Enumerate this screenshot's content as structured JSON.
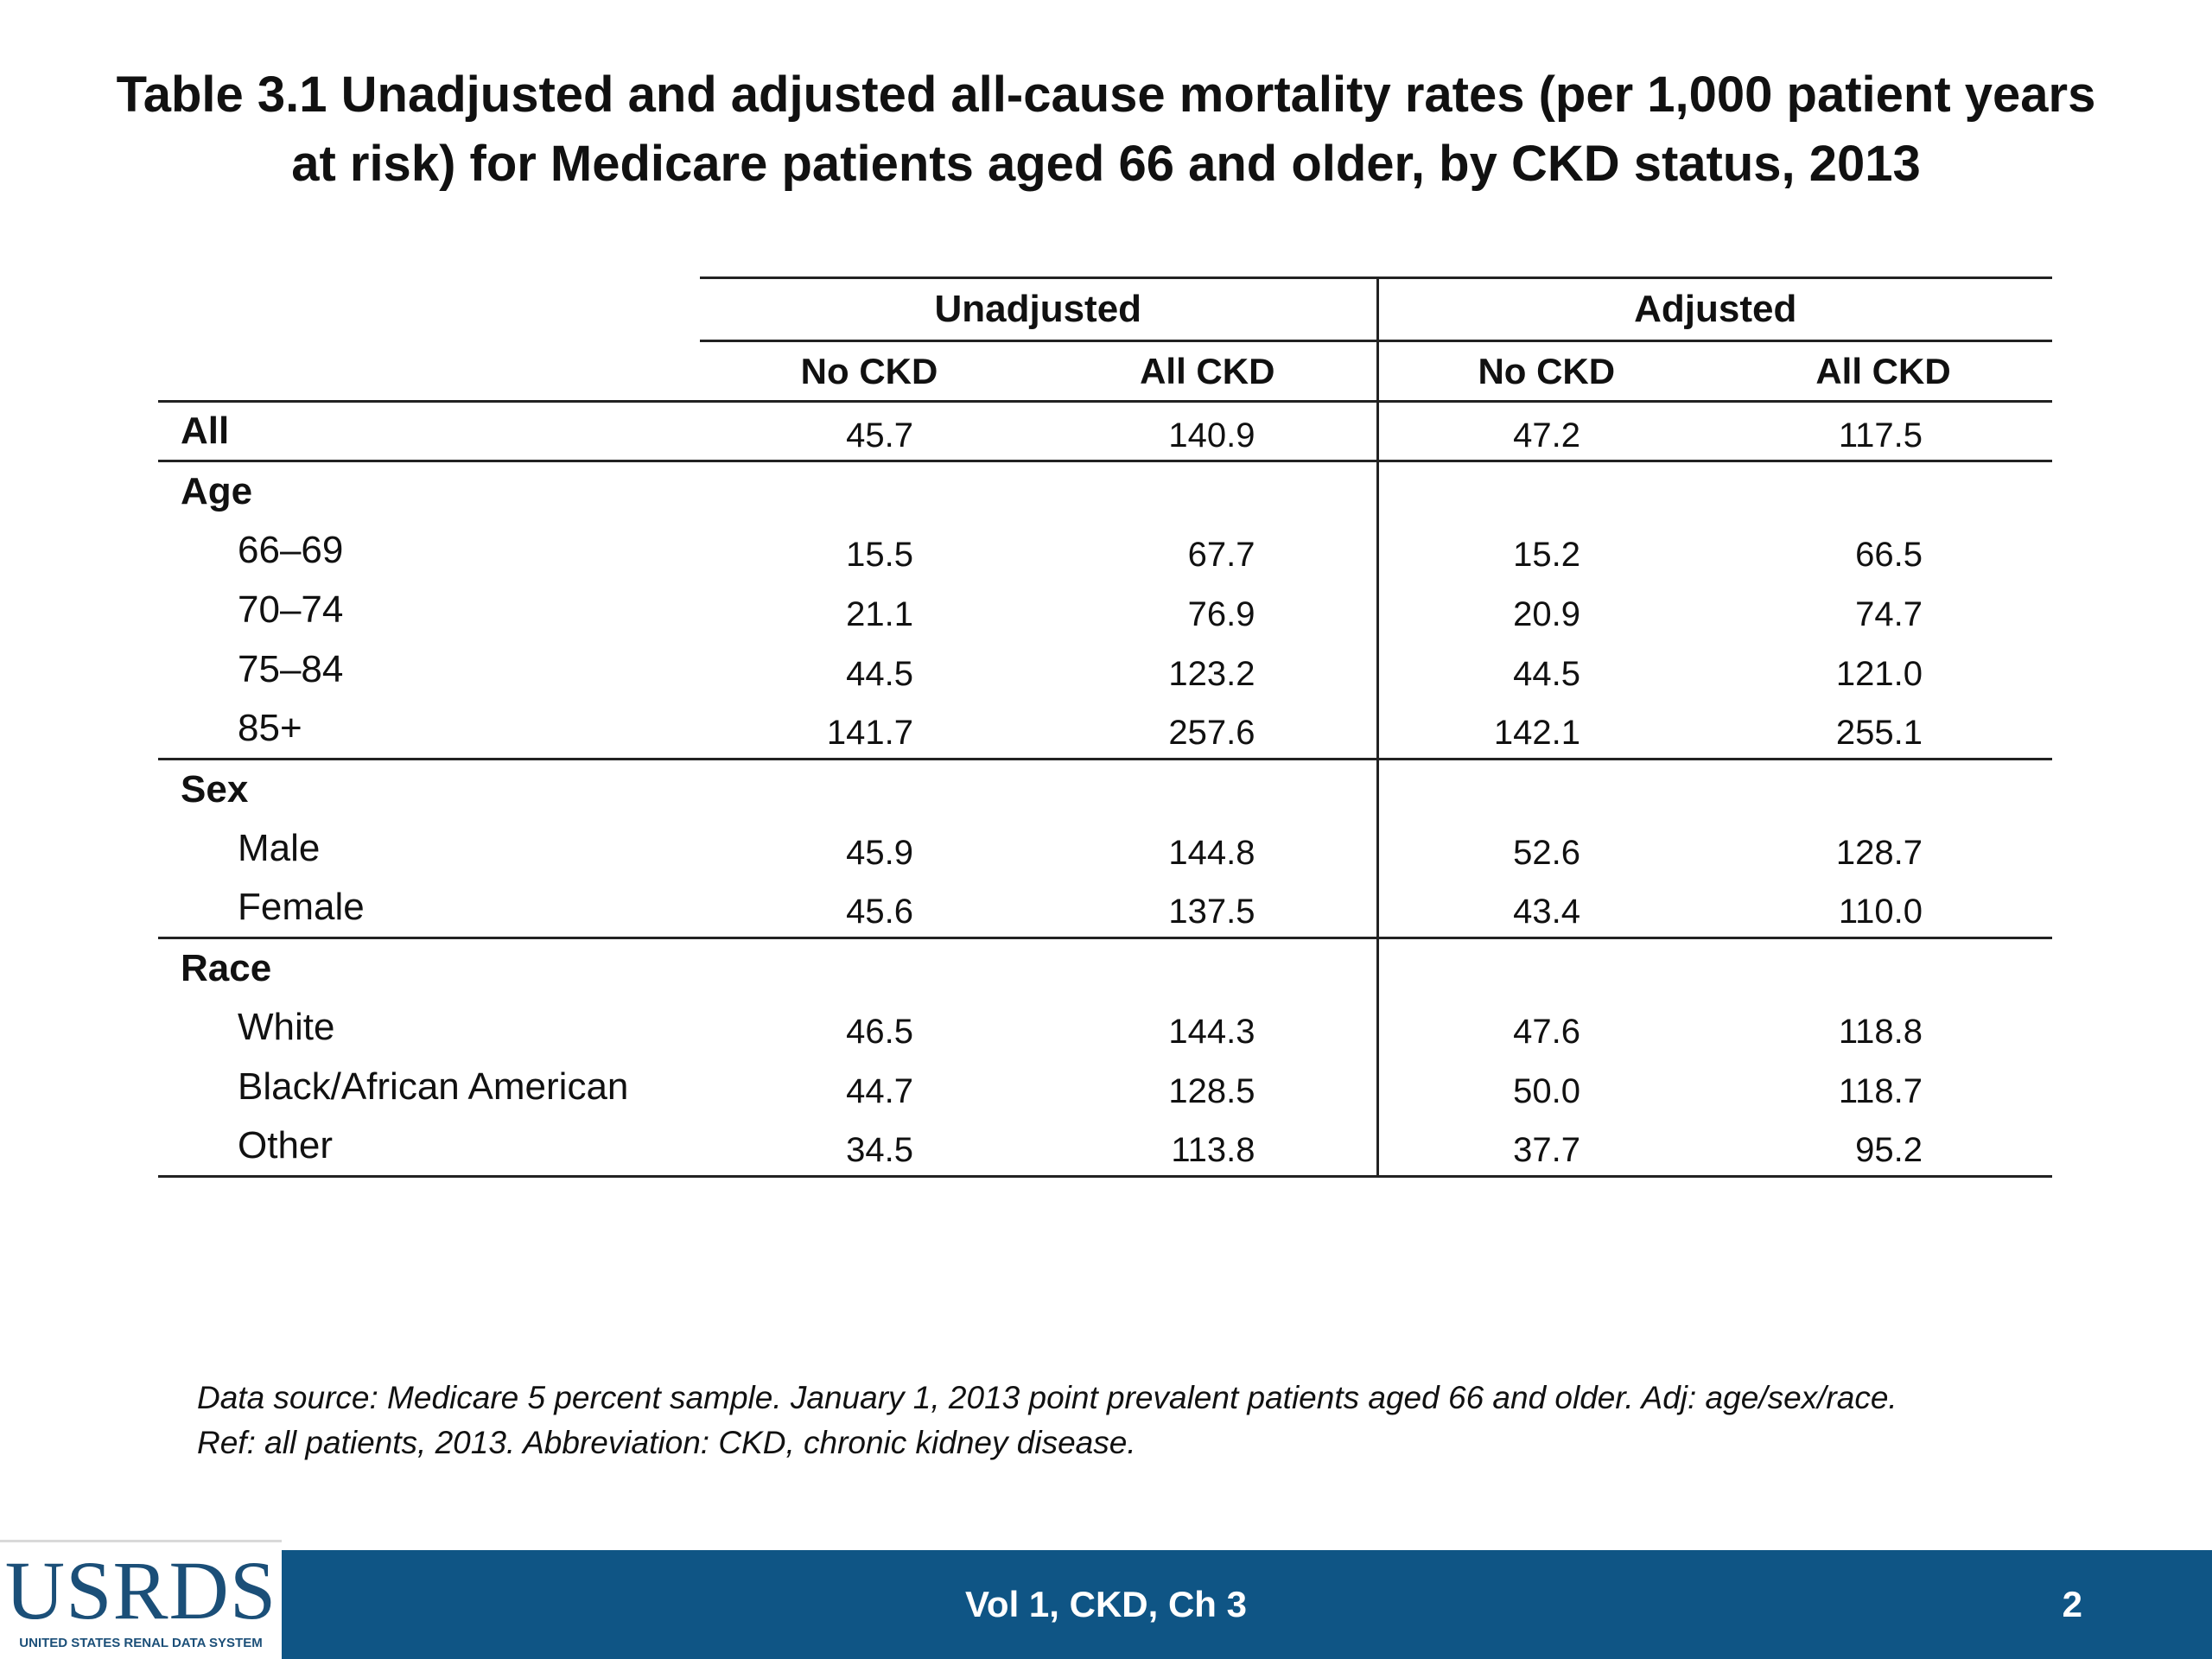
{
  "title": {
    "line1": "Table 3.1  Unadjusted and adjusted all-cause mortality rates (per 1,000 patient years",
    "line2": "at risk) for Medicare patients aged 66 and older, by CKD status, 2013"
  },
  "table": {
    "groups": [
      "Unadjusted",
      "Adjusted"
    ],
    "columns": [
      "No CKD",
      "All CKD",
      "No CKD",
      "All CKD"
    ],
    "rows": [
      {
        "label": "All",
        "kind": "category",
        "values": [
          "45.7",
          "140.9",
          "47.2",
          "117.5"
        ]
      },
      {
        "label": "Age",
        "kind": "category",
        "values": []
      },
      {
        "label": "66–69",
        "kind": "sub",
        "values": [
          "15.5",
          "67.7",
          "15.2",
          "66.5"
        ]
      },
      {
        "label": "70–74",
        "kind": "sub",
        "values": [
          "21.1",
          "76.9",
          "20.9",
          "74.7"
        ]
      },
      {
        "label": "75–84",
        "kind": "sub",
        "values": [
          "44.5",
          "123.2",
          "44.5",
          "121.0"
        ]
      },
      {
        "label": "85+",
        "kind": "sub",
        "values": [
          "141.7",
          "257.6",
          "142.1",
          "255.1"
        ]
      },
      {
        "label": "Sex",
        "kind": "category",
        "values": []
      },
      {
        "label": "Male",
        "kind": "sub",
        "values": [
          "45.9",
          "144.8",
          "52.6",
          "128.7"
        ]
      },
      {
        "label": "Female",
        "kind": "sub",
        "values": [
          "45.6",
          "137.5",
          "43.4",
          "110.0"
        ]
      },
      {
        "label": "Race",
        "kind": "category",
        "values": []
      },
      {
        "label": "White",
        "kind": "sub",
        "values": [
          "46.5",
          "144.3",
          "47.6",
          "118.8"
        ]
      },
      {
        "label": "Black/African American",
        "kind": "sub",
        "values": [
          "44.7",
          "128.5",
          "50.0",
          "118.7"
        ]
      },
      {
        "label": "Other",
        "kind": "sub",
        "values": [
          "34.5",
          "113.8",
          "37.7",
          "95.2"
        ]
      }
    ]
  },
  "source_note": {
    "line1": "Data source: Medicare 5 percent sample. January 1, 2013 point prevalent patients aged 66 and older. Adj: age/sex/race.",
    "line2": "Ref: all patients, 2013. Abbreviation: CKD, chronic kidney disease."
  },
  "footer": {
    "logo_text": "USRDS",
    "logo_subtext": "UNITED STATES RENAL DATA SYSTEM",
    "center_text": "Vol 1, CKD, Ch 3",
    "page_number": "2",
    "bar_color": "#0f5585"
  }
}
